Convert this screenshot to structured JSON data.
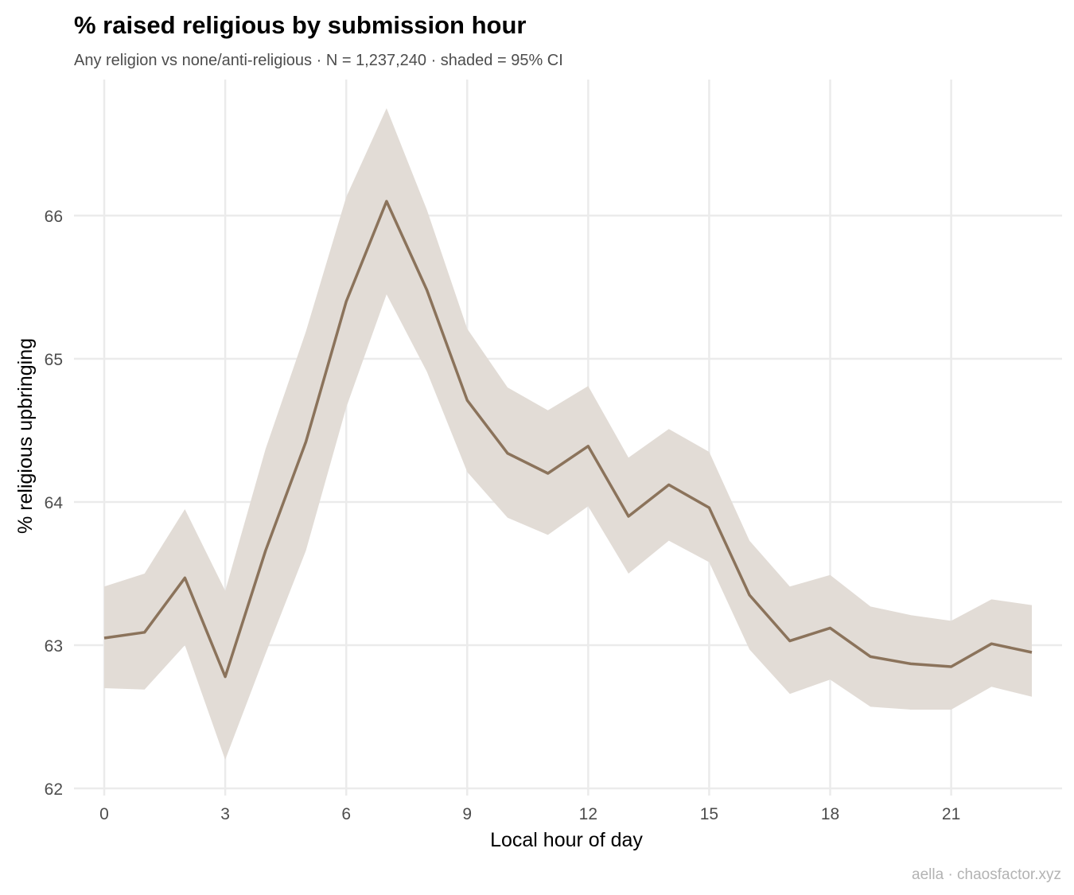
{
  "colors": {
    "line": "#8b735b",
    "ribbon": "#e2dcd6",
    "grid": "#ebebeb"
  },
  "chart_data": {
    "type": "line",
    "title": "% raised religious by submission hour",
    "subtitle": "Any religion vs none/anti-religious · N = 1,237,240 · shaded = 95% CI",
    "xlabel": "Local hour of day",
    "ylabel": "% religious upbringing",
    "caption": "aella · chaosfactor.xyz",
    "xlim": [
      -0.75,
      23.75
    ],
    "ylim": [
      61.95,
      66.95
    ],
    "x_ticks": [
      0,
      3,
      6,
      9,
      12,
      15,
      18,
      21
    ],
    "y_ticks": [
      62,
      63,
      64,
      65,
      66
    ],
    "grid": true,
    "legend": "none",
    "x": [
      0,
      1,
      2,
      3,
      4,
      5,
      6,
      7,
      8,
      9,
      10,
      11,
      12,
      13,
      14,
      15,
      16,
      17,
      18,
      19,
      20,
      21,
      22,
      23
    ],
    "series": [
      {
        "values": [
          63.05,
          63.09,
          63.47,
          62.78,
          63.66,
          64.42,
          65.4,
          66.1,
          65.48,
          64.71,
          64.34,
          64.2,
          64.39,
          63.9,
          64.12,
          63.96,
          63.35,
          63.03,
          63.12,
          62.92,
          62.87,
          62.85,
          63.01,
          62.95
        ],
        "ci_lower": [
          62.7,
          62.69,
          63.0,
          62.2,
          62.94,
          63.66,
          64.66,
          65.45,
          64.91,
          64.21,
          63.89,
          63.77,
          63.97,
          63.5,
          63.73,
          63.58,
          62.97,
          62.66,
          62.76,
          62.57,
          62.55,
          62.55,
          62.71,
          62.64
        ],
        "ci_upper": [
          63.41,
          63.5,
          63.95,
          63.38,
          64.37,
          65.19,
          66.13,
          66.75,
          66.04,
          65.21,
          64.8,
          64.64,
          64.81,
          64.31,
          64.51,
          64.35,
          63.73,
          63.41,
          63.49,
          63.27,
          63.21,
          63.17,
          63.32,
          63.28
        ]
      }
    ]
  }
}
